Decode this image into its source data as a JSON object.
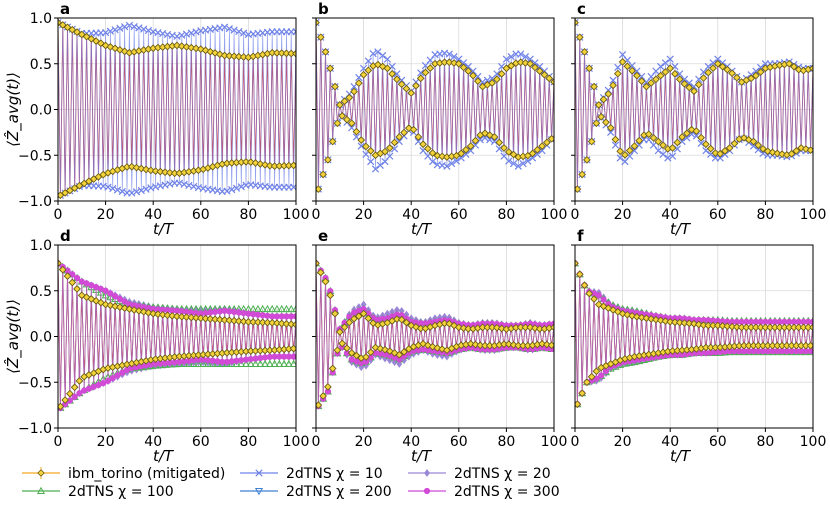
{
  "chart_data": {
    "type": "line",
    "shared": {
      "xlabel": "t/T",
      "ylabel": "⟨Ẑ_avg(t)⟩",
      "xlim": [
        0,
        100
      ],
      "ylim": [
        -1,
        1
      ],
      "xticks": [
        0,
        20,
        40,
        60,
        80,
        100
      ],
      "yticks": [
        -1.0,
        -0.5,
        0.0,
        0.5,
        1.0
      ],
      "ytick_labels": [
        "−1.0",
        "−0.5",
        "0.0",
        "0.5",
        "1.0"
      ],
      "grid": true
    },
    "panels": [
      {
        "label": "a",
        "row": 0,
        "col": 0,
        "envelope_t": [
          0,
          10,
          20,
          30,
          40,
          50,
          60,
          70,
          80,
          90,
          100
        ],
        "series": [
          {
            "name": "ibm_torino (mitigated)",
            "color": "#f5a623",
            "envelope": [
              0.95,
              0.82,
              0.7,
              0.62,
              0.67,
              0.7,
              0.66,
              0.59,
              0.57,
              0.62,
              0.61
            ]
          },
          {
            "name": "2dTNS χ = 10",
            "color": "#6f82e8",
            "envelope": [
              0.95,
              0.83,
              0.84,
              0.92,
              0.85,
              0.8,
              0.86,
              0.9,
              0.82,
              0.85,
              0.85
            ]
          }
        ]
      },
      {
        "label": "b",
        "row": 0,
        "col": 1,
        "envelope_t": [
          0,
          5,
          10,
          15,
          20,
          25,
          30,
          35,
          40,
          45,
          50,
          55,
          60,
          65,
          70,
          75,
          80,
          85,
          90,
          95,
          100
        ],
        "series": [
          {
            "name": "ibm_torino (mitigated)",
            "color": "#f5a623",
            "envelope": [
              0.95,
              0.55,
              0.05,
              0.15,
              0.38,
              0.5,
              0.45,
              0.3,
              0.18,
              0.38,
              0.5,
              0.52,
              0.5,
              0.4,
              0.25,
              0.3,
              0.45,
              0.52,
              0.5,
              0.4,
              0.3
            ]
          },
          {
            "name": "2dTNS χ = 10",
            "color": "#6f82e8",
            "envelope": [
              0.95,
              0.55,
              0.05,
              0.2,
              0.45,
              0.65,
              0.55,
              0.35,
              0.2,
              0.45,
              0.6,
              0.62,
              0.55,
              0.45,
              0.3,
              0.35,
              0.55,
              0.62,
              0.55,
              0.45,
              0.3
            ]
          }
        ]
      },
      {
        "label": "c",
        "row": 0,
        "col": 2,
        "envelope_t": [
          0,
          5,
          10,
          15,
          20,
          25,
          30,
          35,
          40,
          45,
          50,
          55,
          60,
          65,
          70,
          75,
          80,
          85,
          90,
          95,
          100
        ],
        "series": [
          {
            "name": "ibm_torino (mitigated)",
            "color": "#f5a623",
            "envelope": [
              0.95,
              0.55,
              0.05,
              0.2,
              0.52,
              0.4,
              0.25,
              0.35,
              0.45,
              0.3,
              0.2,
              0.38,
              0.5,
              0.42,
              0.3,
              0.35,
              0.45,
              0.48,
              0.5,
              0.42,
              0.45
            ]
          },
          {
            "name": "2dTNS χ = 10",
            "color": "#6f82e8",
            "envelope": [
              0.95,
              0.55,
              0.05,
              0.25,
              0.6,
              0.45,
              0.3,
              0.45,
              0.55,
              0.35,
              0.25,
              0.45,
              0.55,
              0.45,
              0.3,
              0.4,
              0.5,
              0.5,
              0.52,
              0.45,
              0.45
            ]
          }
        ]
      },
      {
        "label": "d",
        "row": 1,
        "col": 0,
        "envelope_t": [
          0,
          10,
          20,
          30,
          40,
          50,
          60,
          70,
          80,
          90,
          100
        ],
        "series": [
          {
            "name": "ibm_torino (mitigated)",
            "color": "#f5a623",
            "envelope": [
              0.8,
              0.45,
              0.35,
              0.3,
              0.25,
              0.22,
              0.2,
              0.18,
              0.16,
              0.15,
              0.13
            ]
          },
          {
            "name": "2dTNS χ = 20",
            "color": "#9a86d6",
            "envelope": [
              0.8,
              0.6,
              0.5,
              0.38,
              0.32,
              0.3,
              0.28,
              0.3,
              0.25,
              0.22,
              0.22
            ]
          },
          {
            "name": "2dTNS χ = 100",
            "color": "#4caf50",
            "envelope": [
              0.8,
              0.6,
              0.45,
              0.35,
              0.32,
              0.3,
              0.3,
              0.3,
              0.3,
              0.3,
              0.3
            ]
          },
          {
            "name": "2dTNS χ = 300",
            "color": "#d14bd6",
            "envelope": [
              0.8,
              0.6,
              0.5,
              0.35,
              0.3,
              0.28,
              0.25,
              0.28,
              0.25,
              0.22,
              0.22
            ]
          }
        ]
      },
      {
        "label": "e",
        "row": 1,
        "col": 1,
        "envelope_t": [
          0,
          5,
          10,
          15,
          20,
          25,
          30,
          35,
          40,
          45,
          50,
          55,
          60,
          65,
          70,
          75,
          80,
          85,
          90,
          95,
          100
        ],
        "series": [
          {
            "name": "ibm_torino (mitigated)",
            "color": "#f5a623",
            "envelope": [
              0.8,
              0.55,
              0.05,
              0.18,
              0.25,
              0.12,
              0.15,
              0.2,
              0.12,
              0.08,
              0.12,
              0.15,
              0.1,
              0.08,
              0.1,
              0.1,
              0.08,
              0.1,
              0.1,
              0.08,
              0.1
            ]
          },
          {
            "name": "2dTNS χ = 20",
            "color": "#9a86d6",
            "envelope": [
              0.8,
              0.6,
              0.08,
              0.28,
              0.35,
              0.2,
              0.25,
              0.3,
              0.2,
              0.15,
              0.2,
              0.22,
              0.15,
              0.12,
              0.15,
              0.15,
              0.12,
              0.12,
              0.15,
              0.12,
              0.12
            ]
          },
          {
            "name": "2dTNS χ = 100",
            "color": "#4caf50",
            "envelope": [
              0.8,
              0.6,
              0.08,
              0.25,
              0.3,
              0.18,
              0.2,
              0.25,
              0.16,
              0.14,
              0.16,
              0.18,
              0.14,
              0.12,
              0.14,
              0.14,
              0.12,
              0.12,
              0.14,
              0.12,
              0.14
            ]
          },
          {
            "name": "2dTNS χ = 300",
            "color": "#d14bd6",
            "envelope": [
              0.8,
              0.6,
              0.08,
              0.25,
              0.3,
              0.18,
              0.2,
              0.25,
              0.16,
              0.14,
              0.16,
              0.18,
              0.14,
              0.12,
              0.14,
              0.14,
              0.12,
              0.12,
              0.14,
              0.12,
              0.14
            ]
          }
        ]
      },
      {
        "label": "f",
        "row": 1,
        "col": 2,
        "envelope_t": [
          0,
          5,
          10,
          15,
          20,
          25,
          30,
          35,
          40,
          45,
          50,
          55,
          60,
          65,
          70,
          75,
          80,
          85,
          90,
          95,
          100
        ],
        "series": [
          {
            "name": "ibm_torino (mitigated)",
            "color": "#f5a623",
            "envelope": [
              0.8,
              0.5,
              0.35,
              0.3,
              0.25,
              0.22,
              0.2,
              0.18,
              0.16,
              0.15,
              0.14,
              0.12,
              0.12,
              0.11,
              0.1,
              0.1,
              0.1,
              0.1,
              0.1,
              0.1,
              0.1
            ]
          },
          {
            "name": "2dTNS χ = 20",
            "color": "#9a86d6",
            "envelope": [
              0.8,
              0.5,
              0.48,
              0.35,
              0.3,
              0.28,
              0.25,
              0.22,
              0.2,
              0.2,
              0.18,
              0.18,
              0.16,
              0.16,
              0.16,
              0.15,
              0.15,
              0.15,
              0.15,
              0.15,
              0.15
            ]
          },
          {
            "name": "2dTNS χ = 100",
            "color": "#4caf50",
            "envelope": [
              0.8,
              0.5,
              0.45,
              0.35,
              0.3,
              0.28,
              0.25,
              0.22,
              0.2,
              0.2,
              0.18,
              0.18,
              0.18,
              0.17,
              0.17,
              0.17,
              0.17,
              0.17,
              0.17,
              0.17,
              0.17
            ]
          },
          {
            "name": "2dTNS χ = 300",
            "color": "#d14bd6",
            "envelope": [
              0.8,
              0.5,
              0.45,
              0.33,
              0.28,
              0.26,
              0.24,
              0.22,
              0.2,
              0.2,
              0.18,
              0.18,
              0.17,
              0.16,
              0.16,
              0.16,
              0.16,
              0.16,
              0.16,
              0.16,
              0.16
            ]
          }
        ]
      }
    ],
    "legend": [
      {
        "label": "ibm_torino (mitigated)",
        "color": "#f5a623",
        "marker": "diamond"
      },
      {
        "label": "2dTNS χ = 10",
        "color": "#6f82e8",
        "marker": "x"
      },
      {
        "label": "2dTNS χ = 20",
        "color": "#9a86d6",
        "marker": "diamond-thin"
      },
      {
        "label": "2dTNS χ = 100",
        "color": "#4caf50",
        "marker": "triangle-up"
      },
      {
        "label": "2dTNS χ = 200",
        "color": "#3f7fd1",
        "marker": "triangle-down"
      },
      {
        "label": "2dTNS χ = 300",
        "color": "#d14bd6",
        "marker": "circle"
      }
    ],
    "legend_position": "bottom"
  }
}
